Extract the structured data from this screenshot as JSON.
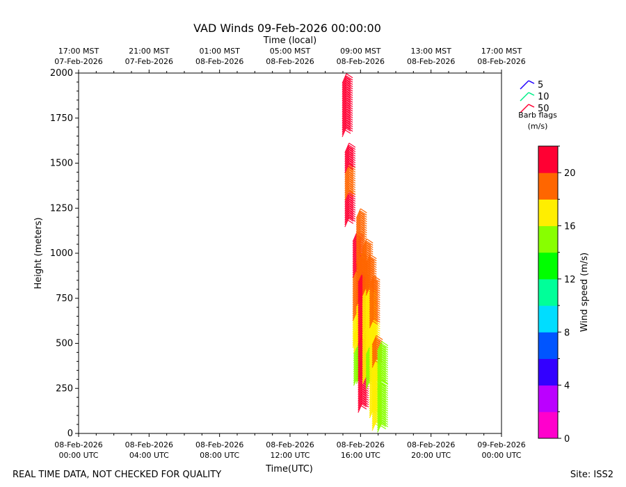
{
  "chart_data": {
    "type": "scatter",
    "title": "VAD Winds 09-Feb-2026 00:00:00",
    "top_axis_label": "Time (local)",
    "xlabel": "Time(UTC)",
    "ylabel": "Height (meters)",
    "xlim_hours": [
      0,
      24
    ],
    "ylim": [
      0,
      2000
    ],
    "y_ticks": [
      0,
      250,
      500,
      750,
      1000,
      1250,
      1500,
      1750,
      2000
    ],
    "x_ticks": [
      {
        "hour": 0,
        "date": "08-Feb-2026",
        "time": "00:00 UTC"
      },
      {
        "hour": 4,
        "date": "08-Feb-2026",
        "time": "04:00 UTC"
      },
      {
        "hour": 8,
        "date": "08-Feb-2026",
        "time": "08:00 UTC"
      },
      {
        "hour": 12,
        "date": "08-Feb-2026",
        "time": "12:00 UTC"
      },
      {
        "hour": 16,
        "date": "08-Feb-2026",
        "time": "16:00 UTC"
      },
      {
        "hour": 20,
        "date": "08-Feb-2026",
        "time": "20:00 UTC"
      },
      {
        "hour": 24,
        "date": "09-Feb-2026",
        "time": "00:00 UTC"
      }
    ],
    "top_ticks": [
      {
        "hour": 0,
        "time": "17:00 MST",
        "date": "07-Feb-2026"
      },
      {
        "hour": 4,
        "time": "21:00 MST",
        "date": "07-Feb-2026"
      },
      {
        "hour": 8,
        "time": "01:00 MST",
        "date": "08-Feb-2026"
      },
      {
        "hour": 12,
        "time": "05:00 MST",
        "date": "08-Feb-2026"
      },
      {
        "hour": 16,
        "time": "09:00 MST",
        "date": "08-Feb-2026"
      },
      {
        "hour": 20,
        "time": "13:00 MST",
        "date": "08-Feb-2026"
      },
      {
        "hour": 24,
        "time": "17:00 MST",
        "date": "08-Feb-2026"
      }
    ],
    "colorbar": {
      "label": "Wind speed (m/s)",
      "range": [
        0,
        22
      ],
      "ticks": [
        0,
        4,
        8,
        12,
        16,
        20
      ],
      "colors": [
        "#ff00cc",
        "#bb00ff",
        "#3300ff",
        "#0055ff",
        "#00ddff",
        "#00ff99",
        "#00ff00",
        "#88ff00",
        "#ffee00",
        "#ff6600",
        "#ff0033"
      ]
    },
    "barb_legend": {
      "items": [
        {
          "value": "5",
          "color": "#2200ff"
        },
        {
          "value": "10",
          "color": "#00ee88"
        },
        {
          "value": "50",
          "color": "#ff0033"
        }
      ],
      "caption_line1": "Barb flags",
      "caption_line2": "(m/s)"
    },
    "columns": [
      {
        "hour": 15.2,
        "segments": [
          [
            1700,
            2000,
            21
          ]
        ]
      },
      {
        "hour": 15.35,
        "segments": [
          [
            1200,
            1350,
            21
          ],
          [
            1350,
            1500,
            19
          ],
          [
            1500,
            1620,
            21
          ]
        ]
      },
      {
        "hour": 15.8,
        "segments": [
          [
            530,
            680,
            17
          ],
          [
            680,
            920,
            19
          ],
          [
            920,
            1120,
            21
          ]
        ]
      },
      {
        "hour": 15.85,
        "segments": [
          [
            320,
            500,
            15
          ],
          [
            500,
            600,
            17
          ]
        ]
      },
      {
        "hour": 16.0,
        "segments": [
          [
            330,
            530,
            15
          ],
          [
            530,
            760,
            17
          ],
          [
            760,
            1000,
            19
          ],
          [
            1000,
            1250,
            19
          ]
        ]
      },
      {
        "hour": 16.1,
        "segments": [
          [
            170,
            550,
            21
          ],
          [
            550,
            900,
            21
          ],
          [
            900,
            1000,
            19
          ]
        ]
      },
      {
        "hour": 16.35,
        "segments": [
          [
            330,
            600,
            17
          ],
          [
            600,
            820,
            17
          ],
          [
            820,
            1080,
            19
          ]
        ]
      },
      {
        "hour": 16.55,
        "segments": [
          [
            300,
            500,
            15
          ],
          [
            500,
            820,
            17
          ],
          [
            820,
            1000,
            19
          ]
        ]
      },
      {
        "hour": 16.75,
        "segments": [
          [
            140,
            430,
            17
          ],
          [
            430,
            640,
            17
          ],
          [
            640,
            880,
            19
          ]
        ]
      },
      {
        "hour": 16.9,
        "segments": [
          [
            70,
            300,
            17
          ],
          [
            300,
            420,
            17
          ],
          [
            420,
            550,
            19
          ]
        ]
      },
      {
        "hour": 17.2,
        "segments": [
          [
            60,
            300,
            15
          ],
          [
            300,
            520,
            15
          ]
        ]
      }
    ]
  },
  "footer": {
    "quality_note": "REAL TIME DATA, NOT CHECKED FOR QUALITY",
    "site": "Site: ISS2"
  }
}
